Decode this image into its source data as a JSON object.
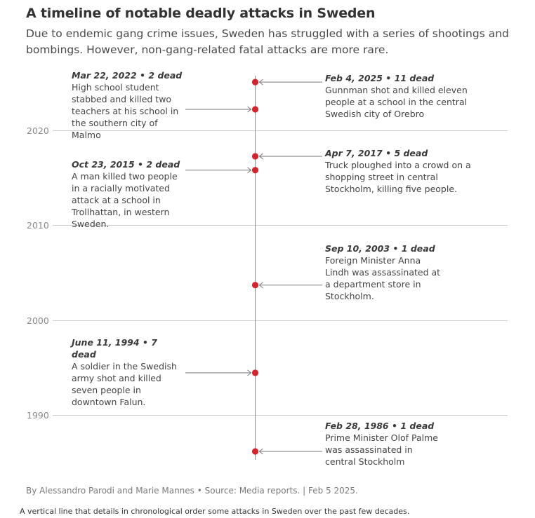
{
  "title": "A timeline of notable deadly attacks in Sweden",
  "subtitle": "Due to endemic gang crime issues, Sweden has struggled with a series of shootings and bombings. However, non-gang-related fatal attacks are more rare.",
  "footer": "By Alessandro Parodi and Marie Mannes • Source: Media reports. | Feb 5 2025.",
  "caption": "A vertical line that details in chronological order some attacks in Sweden over the past few decades.",
  "colors": {
    "marker": "#d8232a",
    "axis": "#8e8e8e",
    "grid": "#cfcfcf",
    "connector": "#7a7a7a"
  },
  "chart_data": {
    "type": "scatter",
    "title": "A timeline of notable deadly attacks in Sweden",
    "yaxis": {
      "ticks": [
        2020,
        2010,
        2000,
        1990
      ],
      "tick_labels": [
        "2020",
        "2010",
        "2000",
        "1990"
      ],
      "range": [
        1985.8,
        2025.8
      ],
      "grid": true
    },
    "events": [
      {
        "year": 2025.09,
        "date": "Feb 4, 2025",
        "dead": "11 dead",
        "side": "right",
        "description": "Gunnman shot and killed eleven people at a school in the central Swedish city of Orebro"
      },
      {
        "year": 2022.22,
        "date": "Mar 22, 2022",
        "dead": "2 dead",
        "side": "left",
        "description": "High school student stabbed and killed two teachers at his school in the southern city of Malmo"
      },
      {
        "year": 2017.27,
        "date": "Apr 7, 2017",
        "dead": "5 dead",
        "side": "right",
        "description": "Truck ploughed into a crowd on a shopping street in central Stockholm, killing five people."
      },
      {
        "year": 2015.81,
        "date": "Oct 23, 2015",
        "dead": "2 dead",
        "side": "left",
        "description": "A man killed two people in a racially motivated attack at a school in Trollhattan, in western Sweden."
      },
      {
        "year": 2003.69,
        "date": "Sep 10, 2003",
        "dead": "1 dead",
        "side": "right",
        "description": "Foreign Minister Anna Lindh was assassinated at a department store in Stockholm."
      },
      {
        "year": 1994.44,
        "date": "June 11, 1994",
        "dead": "7 dead",
        "side": "left",
        "description": "A soldier in the Swedish army shot and killed seven people in downtown Falun."
      },
      {
        "year": 1986.16,
        "date": "Feb 28, 1986",
        "dead": "1 dead",
        "side": "right",
        "description": "Prime Minister Olof Palme was assassinated in central Stockholm"
      }
    ]
  }
}
